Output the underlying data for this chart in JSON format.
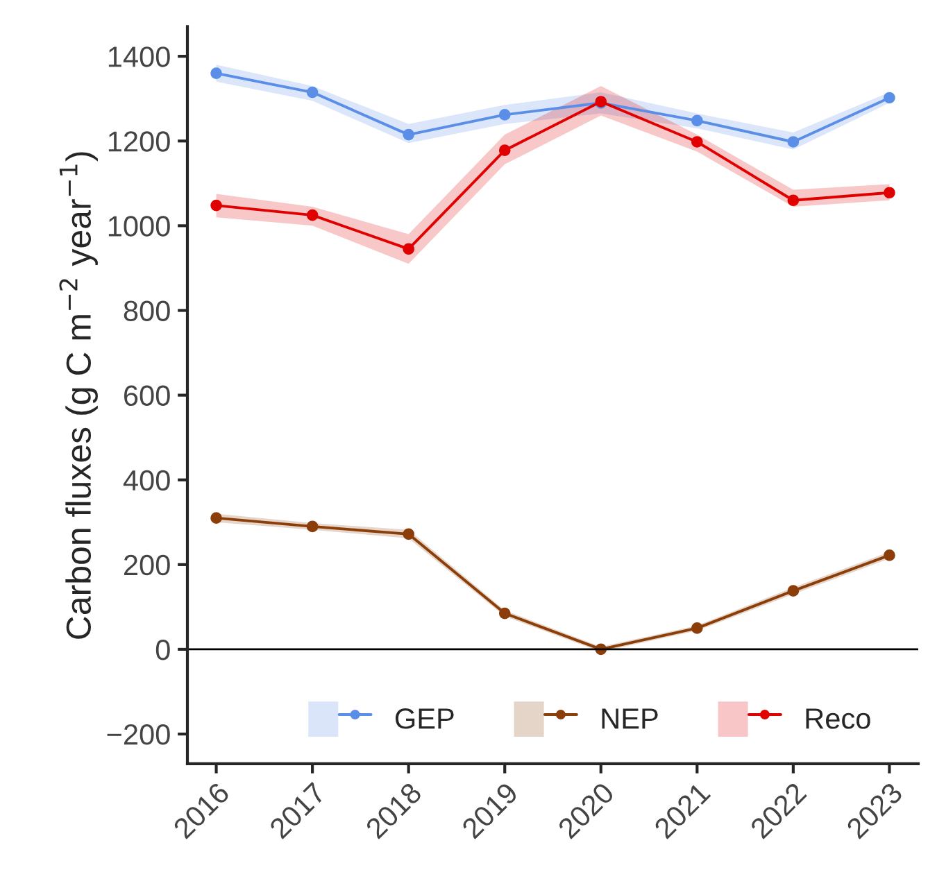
{
  "chart_data": {
    "type": "line",
    "ylabel": "Carbon fluxes (g C m$^{−2}$ year$^{−1}$)",
    "categories": [
      "2016",
      "2017",
      "2018",
      "2019",
      "2020",
      "2021",
      "2022",
      "2023"
    ],
    "series": [
      {
        "name": "GEP",
        "color": "#5b8ee6",
        "values": [
          1360,
          1315,
          1215,
          1262,
          1290,
          1248,
          1198,
          1302
        ],
        "lower": [
          1340,
          1295,
          1195,
          1240,
          1265,
          1230,
          1180,
          1290
        ],
        "upper": [
          1380,
          1330,
          1240,
          1285,
          1315,
          1265,
          1220,
          1315
        ]
      },
      {
        "name": "NEP",
        "color": "#8b3e0a",
        "values": [
          310,
          290,
          272,
          85,
          0,
          50,
          138,
          222
        ],
        "lower": [
          300,
          282,
          262,
          78,
          -6,
          44,
          130,
          214
        ],
        "upper": [
          320,
          298,
          282,
          92,
          6,
          56,
          146,
          230
        ]
      },
      {
        "name": "Reco",
        "color": "#e00000",
        "values": [
          1048,
          1025,
          945,
          1178,
          1293,
          1198,
          1060,
          1078
        ],
        "lower": [
          1020,
          1000,
          910,
          1145,
          1260,
          1175,
          1045,
          1060
        ],
        "upper": [
          1075,
          1045,
          980,
          1215,
          1330,
          1215,
          1085,
          1098
        ]
      }
    ],
    "ylim": [
      -270,
      1470
    ],
    "yticks": [
      {
        "value": -200,
        "label": "−200"
      },
      0,
      200,
      400,
      600,
      800,
      1000,
      1200,
      1400
    ],
    "ref_lines": [
      {
        "axis": "y",
        "value": 0,
        "color": "#000000"
      }
    ],
    "grid": false,
    "legend": "bottom",
    "marker": "circle",
    "line_style": "solid"
  }
}
